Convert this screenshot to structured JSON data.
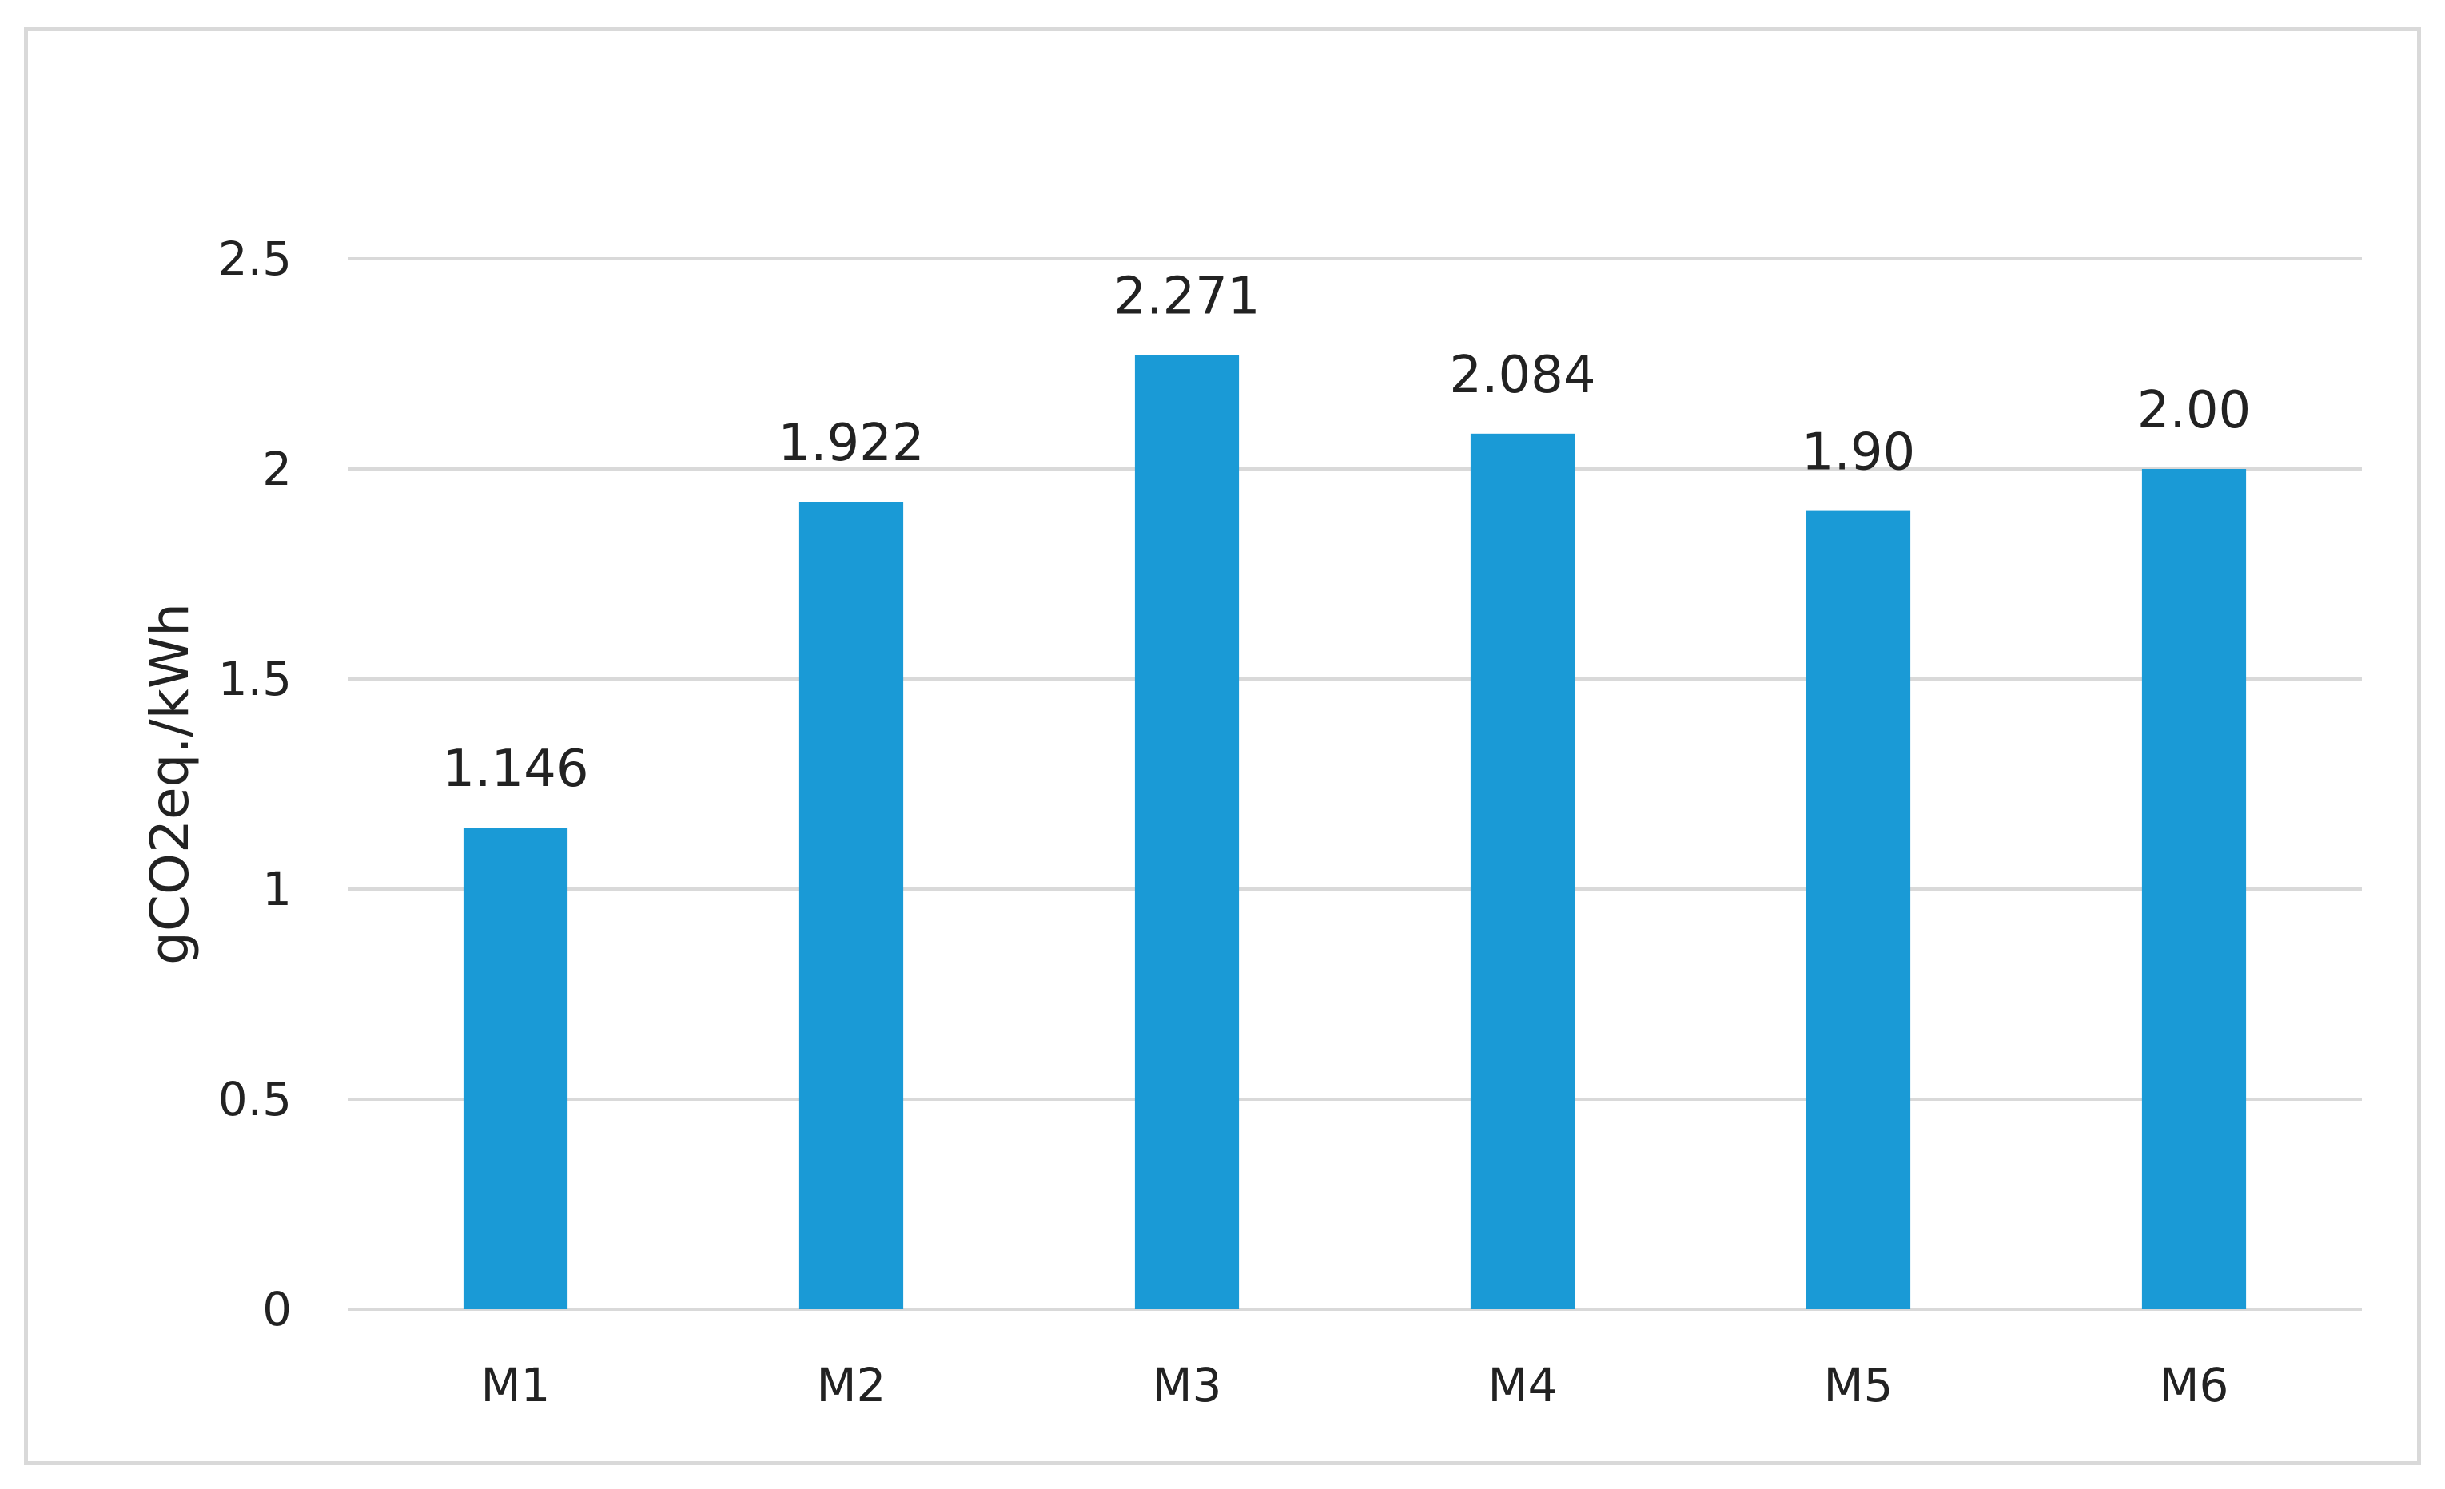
{
  "chart_data": {
    "type": "bar",
    "title": "",
    "xlabel": "",
    "ylabel": "gCO2eq./kWh",
    "categories": [
      "M1",
      "M2",
      "M3",
      "M4",
      "M5",
      "M6"
    ],
    "values": [
      1.146,
      1.922,
      2.271,
      2.084,
      1.9,
      2.0
    ],
    "data_labels": [
      "1.146",
      "1.922",
      "2.271",
      "2.084",
      "1.90",
      "2.00"
    ],
    "ylim": [
      0,
      2.5
    ],
    "yticks": [
      0,
      0.5,
      1,
      1.5,
      2,
      2.5
    ],
    "ytick_labels": [
      "0",
      "0.5",
      "1",
      "1.5",
      "2",
      "2.5"
    ],
    "grid": true,
    "legend": "none",
    "colors": {
      "bar": "#1a9ad6",
      "grid": "#d9d9d9",
      "text": "#222222",
      "frame": "#d9d9d9"
    }
  }
}
